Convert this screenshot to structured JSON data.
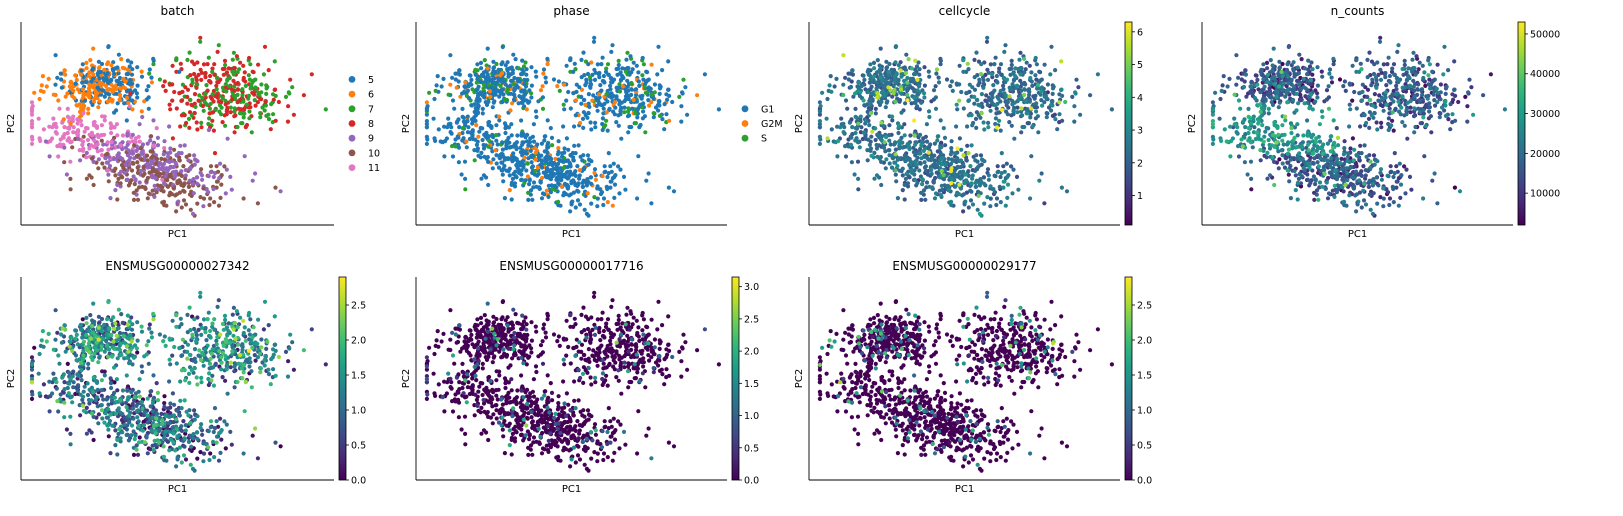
{
  "figure": {
    "xlabel": "PC1",
    "ylabel": "PC2"
  },
  "panels": [
    {
      "title": "batch",
      "kind": "categorical",
      "legend": [
        {
          "label": "5",
          "color": "#1f77b4"
        },
        {
          "label": "6",
          "color": "#ff7f0e"
        },
        {
          "label": "7",
          "color": "#2ca02c"
        },
        {
          "label": "8",
          "color": "#d62728"
        },
        {
          "label": "9",
          "color": "#9467bd"
        },
        {
          "label": "10",
          "color": "#8c564b"
        },
        {
          "label": "11",
          "color": "#e377c2"
        }
      ]
    },
    {
      "title": "phase",
      "kind": "categorical",
      "legend": [
        {
          "label": "G1",
          "color": "#1f77b4"
        },
        {
          "label": "G2M",
          "color": "#ff7f0e"
        },
        {
          "label": "S",
          "color": "#2ca02c"
        }
      ]
    },
    {
      "title": "cellcycle",
      "kind": "continuous",
      "vmin": 0.1,
      "vmax": 6.3,
      "ticks": [
        "1",
        "2",
        "3",
        "4",
        "5",
        "6"
      ]
    },
    {
      "title": "n_counts",
      "kind": "continuous",
      "vmin": 2000,
      "vmax": 53000,
      "ticks": [
        "10000",
        "20000",
        "30000",
        "40000",
        "50000"
      ]
    },
    {
      "title": "ENSMUSG00000027342",
      "kind": "continuous",
      "vmin": 0.0,
      "vmax": 2.9,
      "ticks": [
        "0.0",
        "0.5",
        "1.0",
        "1.5",
        "2.0",
        "2.5"
      ]
    },
    {
      "title": "ENSMUSG00000017716",
      "kind": "continuous",
      "vmin": 0.0,
      "vmax": 3.15,
      "ticks": [
        "0.0",
        "0.5",
        "1.0",
        "1.5",
        "2.0",
        "2.5",
        "3.0"
      ]
    },
    {
      "title": "ENSMUSG00000029177",
      "kind": "continuous",
      "vmin": 0.0,
      "vmax": 2.9,
      "ticks": [
        "0.0",
        "0.5",
        "1.0",
        "1.5",
        "2.0",
        "2.5"
      ]
    }
  ],
  "chart_data": {
    "type": "scatter",
    "colormap": "viridis",
    "grid": false,
    "legend_placement": "right of axes",
    "points_per_panel_approx": 1400,
    "xlabel": "PC1",
    "ylabel": "PC2",
    "clusters": [
      {
        "batch": "5",
        "n": 160,
        "cx": 0.28,
        "cy": 0.7,
        "sx": 0.07,
        "sy": 0.07
      },
      {
        "batch": "6",
        "n": 180,
        "cx": 0.24,
        "cy": 0.68,
        "sx": 0.07,
        "sy": 0.07
      },
      {
        "batch": "7",
        "n": 170,
        "cx": 0.68,
        "cy": 0.65,
        "sx": 0.1,
        "sy": 0.09
      },
      {
        "batch": "8",
        "n": 200,
        "cx": 0.64,
        "cy": 0.65,
        "sx": 0.1,
        "sy": 0.09
      },
      {
        "batch": "9",
        "n": 230,
        "cx": 0.42,
        "cy": 0.3,
        "sx": 0.09,
        "sy": 0.07
      },
      {
        "batch": "10",
        "n": 230,
        "cx": 0.44,
        "cy": 0.25,
        "sx": 0.08,
        "sy": 0.06
      },
      {
        "batch": "11",
        "n": 160,
        "cx": 0.2,
        "cy": 0.45,
        "sx": 0.06,
        "sy": 0.05
      }
    ]
  }
}
